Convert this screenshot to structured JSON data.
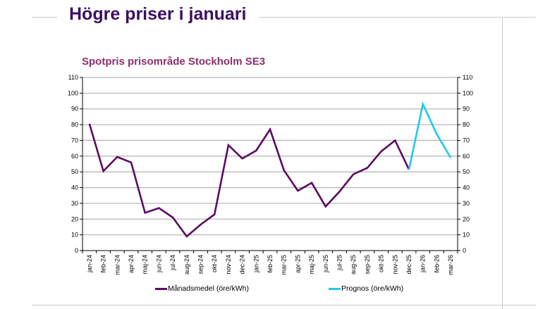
{
  "slide": {
    "title": "Högre priser i januari"
  },
  "colors": {
    "title": "#3a1060",
    "chart_title": "#8e2f6a",
    "series_actual": "#5b0a63",
    "series_forecast": "#1fc8f0",
    "gridline": "#b8b8b8"
  },
  "chart_data": {
    "type": "line",
    "title": "Spotpris prisområde Stockholm SE3",
    "xlabel": "",
    "ylabel": "",
    "ylim": [
      0,
      110
    ],
    "yticks": [
      0,
      10,
      20,
      30,
      40,
      50,
      60,
      70,
      80,
      90,
      100,
      110
    ],
    "ytick_labels": [
      "0",
      "10",
      "20",
      "30",
      "40",
      "50",
      "60",
      "70",
      "80",
      "90",
      "100",
      "110"
    ],
    "secondary_y_axis": true,
    "grid": true,
    "legend_position": "bottom",
    "categories": [
      "jan-24",
      "feb-24",
      "mar-24",
      "apr-24",
      "maj-24",
      "jun-24",
      "jul-24",
      "aug-24",
      "sep-24",
      "okt-24",
      "nov-24",
      "dec-24",
      "jan-25",
      "feb-25",
      "mar-25",
      "apr-25",
      "maj-25",
      "jun-25",
      "jul-25",
      "aug-25",
      "sep-25",
      "okt-25",
      "nov-25",
      "dec-25",
      "jan-26",
      "feb-26",
      "mar-26"
    ],
    "series": [
      {
        "name": "Månadsmedel (öre/kWh)",
        "color": "#5b0a63",
        "values": [
          80.5,
          50.5,
          59.5,
          56,
          24,
          27,
          21,
          9,
          16.5,
          23,
          67,
          58.5,
          63.5,
          77,
          51,
          38,
          43,
          28,
          37.5,
          48.5,
          52.5,
          63,
          70,
          51.5,
          null,
          null,
          null
        ]
      },
      {
        "name": "Prognos (öre/kWh)",
        "color": "#1fc8f0",
        "values": [
          null,
          null,
          null,
          null,
          null,
          null,
          null,
          null,
          null,
          null,
          null,
          null,
          null,
          null,
          null,
          null,
          null,
          null,
          null,
          null,
          null,
          null,
          null,
          51.5,
          93,
          74,
          59
        ]
      }
    ]
  }
}
